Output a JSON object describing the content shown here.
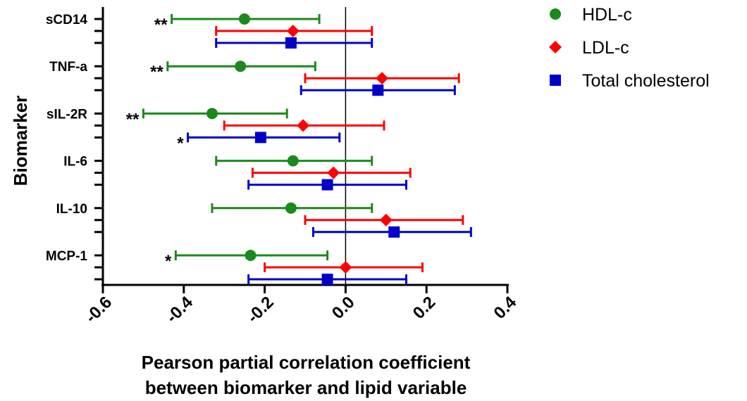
{
  "chart_data": {
    "type": "forest",
    "ylabel": "Biomarker",
    "xlabel_line1": "Pearson partial correlation coefficient",
    "xlabel_line2": "between biomarker and lipid variable",
    "xlim": [
      -0.6,
      0.4
    ],
    "xticks": [
      "-0.6",
      "-0.4",
      "-0.2",
      "0.0",
      "0.2",
      "0.4"
    ],
    "xtick_values": [
      -0.6,
      -0.4,
      -0.2,
      0.0,
      0.2,
      0.4
    ],
    "reference_line": 0.0,
    "categories": [
      "sCD14",
      "TNF-a",
      "sIL-2R",
      "IL-6",
      "IL-10",
      "MCP-1"
    ],
    "series": [
      {
        "name": "HDL-c",
        "color": "#1a8a1a",
        "marker": "circle",
        "estimates": [
          -0.25,
          -0.26,
          -0.33,
          -0.13,
          -0.135,
          -0.235
        ],
        "lower": [
          -0.43,
          -0.44,
          -0.5,
          -0.32,
          -0.33,
          -0.42
        ],
        "upper": [
          -0.065,
          -0.075,
          -0.145,
          0.065,
          0.065,
          -0.045
        ]
      },
      {
        "name": "LDL-c",
        "color": "#ff0000",
        "marker": "diamond",
        "estimates": [
          -0.13,
          0.09,
          -0.105,
          -0.03,
          0.1,
          0.0
        ],
        "lower": [
          -0.32,
          -0.1,
          -0.3,
          -0.23,
          -0.1,
          -0.2
        ],
        "upper": [
          0.065,
          0.28,
          0.095,
          0.16,
          0.29,
          0.19
        ]
      },
      {
        "name": "Total cholesterol",
        "color": "#0000c8",
        "marker": "square",
        "estimates": [
          -0.135,
          0.08,
          -0.21,
          -0.045,
          0.12,
          -0.045
        ],
        "lower": [
          -0.32,
          -0.11,
          -0.39,
          -0.24,
          -0.08,
          -0.24
        ],
        "upper": [
          0.065,
          0.27,
          -0.015,
          0.15,
          0.31,
          0.15
        ]
      }
    ],
    "annotations": [
      {
        "text": "**",
        "category": "sCD14",
        "series": "HDL-c"
      },
      {
        "text": "**",
        "category": "TNF-a",
        "series": "HDL-c"
      },
      {
        "text": "**",
        "category": "sIL-2R",
        "series": "HDL-c"
      },
      {
        "text": "*",
        "category": "sIL-2R",
        "series": "Total cholesterol"
      },
      {
        "text": "*",
        "category": "MCP-1",
        "series": "HDL-c"
      }
    ],
    "legend_position": "top-right"
  }
}
